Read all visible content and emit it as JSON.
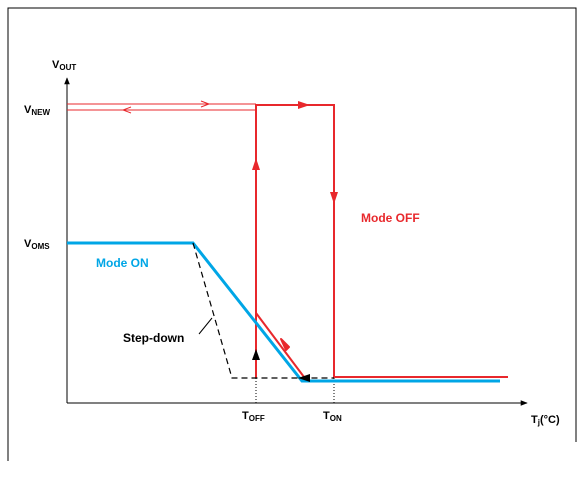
{
  "labels": {
    "y_axis": "V",
    "y_axis_sub": "OUT",
    "x_axis": "T",
    "x_axis_sub": "j",
    "x_axis_unit": "(°C)",
    "v_new": "V",
    "v_new_sub": "NEW",
    "v_oms": "V",
    "v_oms_sub": "OMS",
    "t_off": "T",
    "t_off_sub": "OFF",
    "t_on": "T",
    "t_on_sub": "ON",
    "mode_on": "Mode ON",
    "mode_off": "Mode OFF",
    "step_down": "Step-down"
  },
  "colors": {
    "mode_on": "#00a6e6",
    "mode_off": "#e8282c",
    "step_down": "#000000",
    "axes": "#000000",
    "frame": "#000000"
  }
}
